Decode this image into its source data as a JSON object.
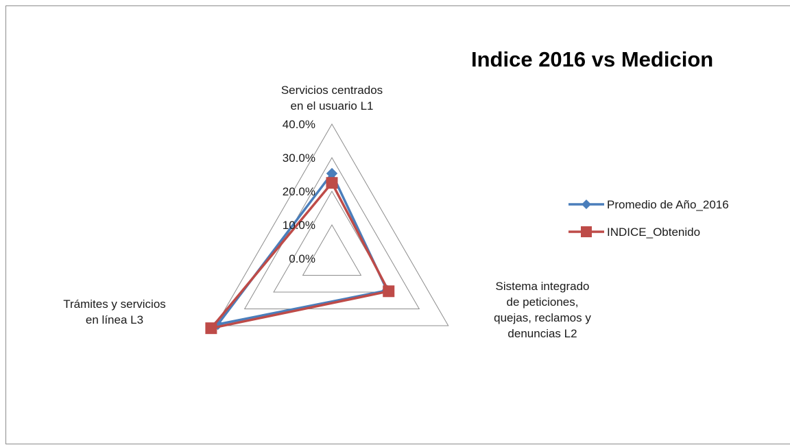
{
  "chart_data": {
    "type": "radar",
    "title": "Indice 2016 vs Medicion",
    "axes": [
      "Servicios centrados en el usuario L1",
      "Sistema integrado de peticiones, quejas,  reclamos y denuncias  L2",
      "Trámites y servicios en línea  L3"
    ],
    "axis_label_lines": [
      [
        "Servicios centrados",
        "en el usuario L1"
      ],
      [
        "Sistema integrado",
        "de peticiones,",
        "quejas,  reclamos y",
        "denuncias  L2"
      ],
      [
        "Trámites y servicios",
        "en línea  L3"
      ]
    ],
    "ticks": [
      "0.0%",
      "10.0%",
      "20.0%",
      "30.0%",
      "40.0%"
    ],
    "range": [
      0,
      40
    ],
    "series": [
      {
        "name": "Promedio de Año_2016",
        "values": [
          25.3,
          19.0,
          39.2
        ],
        "color": "#4a7ebb",
        "marker": "diamond"
      },
      {
        "name": "INDICE_Obtenido",
        "values": [
          22.5,
          19.5,
          41.5
        ],
        "color": "#be4b48",
        "marker": "square"
      }
    ],
    "legend_position": "right",
    "grid": true
  }
}
